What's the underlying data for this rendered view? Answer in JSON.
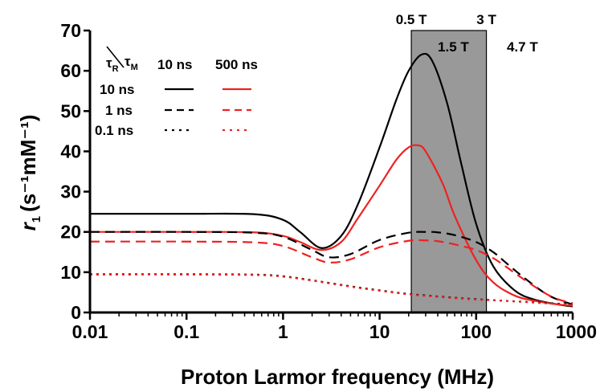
{
  "chart_data": {
    "type": "line",
    "title": "",
    "xlabel": "Proton Larmor frequency (MHz)",
    "ylabel_main": "r",
    "ylabel_sub": "1",
    "ylabel_units": "(s⁻¹mM⁻¹)",
    "x_scale": "log",
    "xlim": [
      0.01,
      1000
    ],
    "ylim": [
      0,
      70
    ],
    "x_ticks": [
      {
        "value": 0.01,
        "label": "0.01"
      },
      {
        "value": 0.1,
        "label": "0.1"
      },
      {
        "value": 1,
        "label": "1"
      },
      {
        "value": 10,
        "label": "10"
      },
      {
        "value": 100,
        "label": "100"
      },
      {
        "value": 1000,
        "label": "1000"
      }
    ],
    "y_ticks": [
      {
        "value": 0,
        "label": "0"
      },
      {
        "value": 10,
        "label": "10"
      },
      {
        "value": 20,
        "label": "20"
      },
      {
        "value": 30,
        "label": "30"
      },
      {
        "value": 40,
        "label": "40"
      },
      {
        "value": 50,
        "label": "50"
      },
      {
        "value": 60,
        "label": "60"
      },
      {
        "value": 70,
        "label": "70"
      }
    ],
    "grid": false,
    "shaded_band": {
      "x_from": 21.3,
      "x_to": 127.7,
      "color": "#999999"
    },
    "field_markers": [
      {
        "label": "0.5 T",
        "x": 21.3,
        "row": "top"
      },
      {
        "label": "3 T",
        "x": 127.7,
        "row": "top"
      },
      {
        "label": "1.5 T",
        "x": 63.9,
        "row": "inner"
      },
      {
        "label": "4.7 T",
        "x": 200,
        "row": "inner"
      }
    ],
    "legend": {
      "position": "top-left",
      "header_row": "τR",
      "header_col": "τM",
      "row_sub": "R",
      "col_sub": "M",
      "greek_tau": "τ",
      "columns": [
        "10 ns",
        "500 ns"
      ],
      "rows": [
        "10 ns",
        "1 ns",
        "0.1 ns"
      ]
    },
    "colors": {
      "black": "#000000",
      "red": "#ee2222"
    },
    "series": [
      {
        "tau_R": "10 ns",
        "tau_M": "10 ns",
        "color": "black",
        "dash": "solid",
        "x": [
          0.01,
          0.1,
          0.5,
          1,
          1.5,
          2.5,
          4,
          6,
          10,
          15,
          20,
          27,
          35,
          50,
          70,
          100,
          150,
          250,
          400,
          700,
          1000
        ],
        "y": [
          24.5,
          24.5,
          24.4,
          23.0,
          20.0,
          16.0,
          19.0,
          27.0,
          41.0,
          53.0,
          60.0,
          64.0,
          62.5,
          52.0,
          37.0,
          22.0,
          11.5,
          5.5,
          3.2,
          2.0,
          1.5
        ]
      },
      {
        "tau_R": "10 ns",
        "tau_M": "500 ns",
        "color": "red",
        "dash": "solid",
        "x": [
          0.01,
          0.1,
          0.5,
          1,
          1.5,
          2.5,
          4,
          6,
          10,
          15,
          20,
          25,
          30,
          45,
          60,
          100,
          150,
          250,
          400,
          700,
          1000
        ],
        "y": [
          20.0,
          20.0,
          19.9,
          19.0,
          17.5,
          15.5,
          17.5,
          23.5,
          31.5,
          38.0,
          41.0,
          41.5,
          40.0,
          32.0,
          24.0,
          13.0,
          7.5,
          4.2,
          2.9,
          2.0,
          1.7
        ]
      },
      {
        "tau_R": "1 ns",
        "tau_M": "10 ns",
        "color": "black",
        "dash": "dashed",
        "x": [
          0.01,
          0.1,
          0.5,
          1,
          2,
          3,
          5,
          10,
          20,
          30,
          40,
          60,
          100,
          150,
          200,
          300,
          500,
          700,
          1000
        ],
        "y": [
          20.0,
          20.0,
          19.8,
          18.8,
          15.5,
          13.7,
          14.5,
          18.0,
          19.8,
          20.0,
          19.9,
          19.2,
          17.5,
          15.0,
          12.5,
          9.0,
          5.0,
          3.2,
          2.0
        ]
      },
      {
        "tau_R": "1 ns",
        "tau_M": "500 ns",
        "color": "red",
        "dash": "dashed",
        "x": [
          0.01,
          0.1,
          0.5,
          1,
          2,
          3,
          5,
          10,
          20,
          30,
          40,
          60,
          100,
          150,
          200,
          300,
          500,
          700,
          1000
        ],
        "y": [
          17.6,
          17.6,
          17.4,
          16.5,
          13.7,
          12.4,
          13.2,
          16.2,
          17.8,
          17.9,
          17.7,
          16.9,
          15.5,
          13.5,
          11.5,
          8.5,
          5.0,
          3.3,
          2.3
        ]
      },
      {
        "tau_R": "0.1 ns",
        "tau_M": "10 ns",
        "color": "black",
        "dash": "dotted",
        "x": [
          0.01,
          0.1,
          0.5,
          1,
          2,
          5,
          10,
          20,
          50,
          100,
          200,
          500,
          1000
        ],
        "y": [
          9.5,
          9.5,
          9.4,
          9.0,
          8.0,
          6.5,
          5.5,
          4.6,
          3.8,
          3.3,
          2.9,
          2.4,
          2.0
        ]
      },
      {
        "tau_R": "0.1 ns",
        "tau_M": "500 ns",
        "color": "red",
        "dash": "dotted",
        "x": [
          0.01,
          0.1,
          0.5,
          1,
          2,
          5,
          10,
          20,
          50,
          100,
          200,
          500,
          1000
        ],
        "y": [
          9.4,
          9.4,
          9.3,
          8.9,
          7.9,
          6.4,
          5.4,
          4.5,
          3.7,
          3.2,
          2.9,
          2.3,
          1.9
        ]
      }
    ]
  }
}
